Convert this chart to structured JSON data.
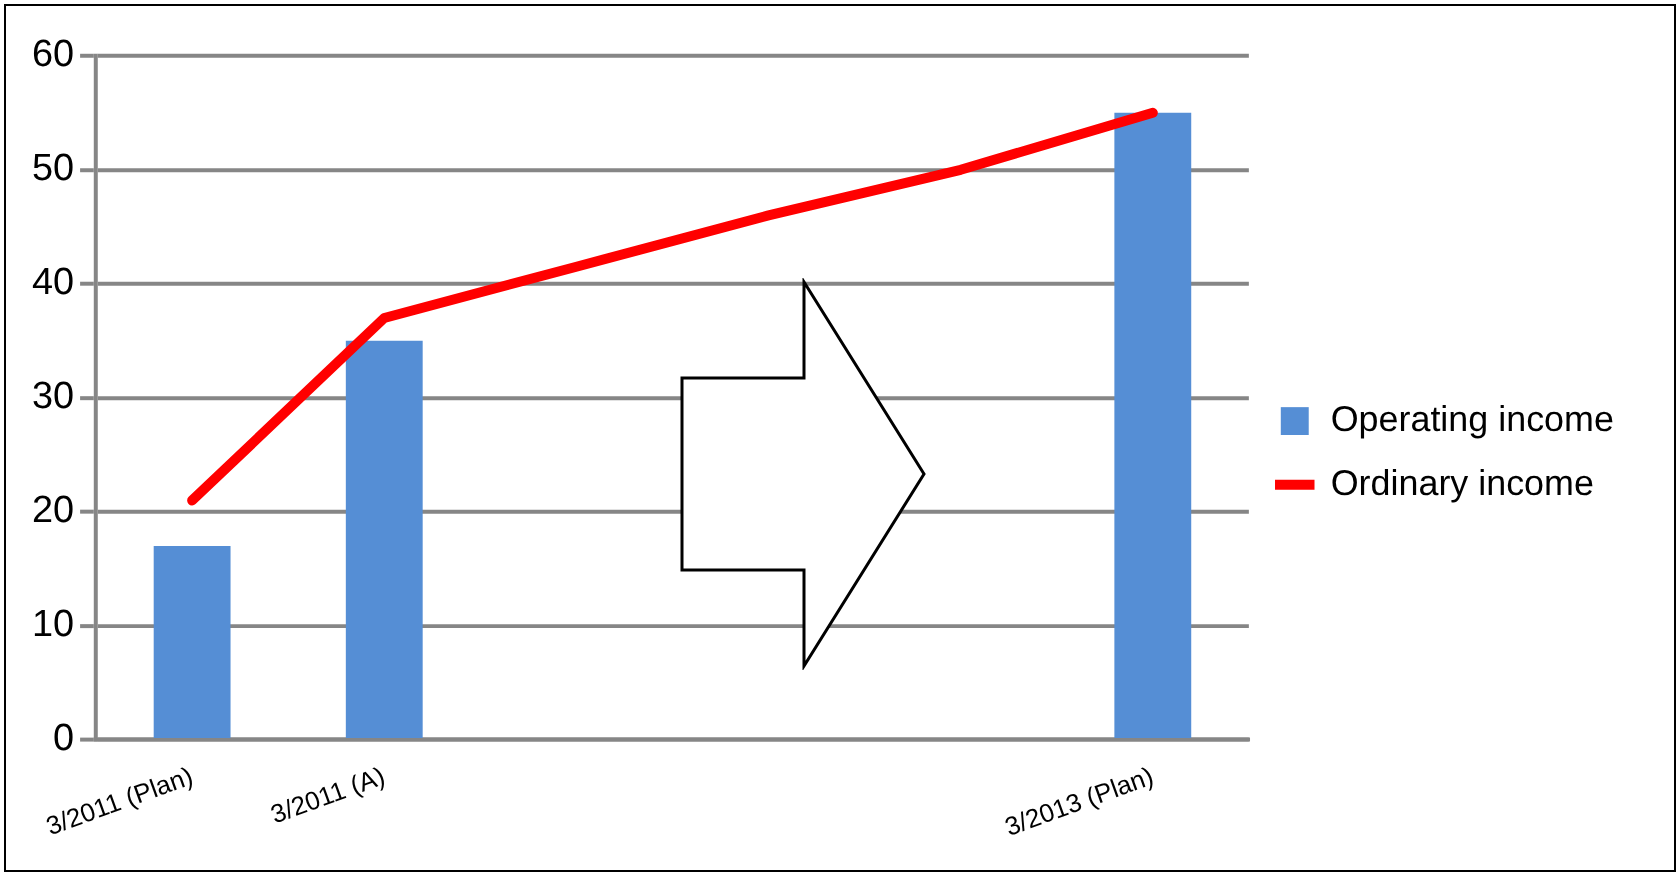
{
  "chart_data": {
    "type": "bar",
    "categories": [
      "3/2011 (Plan)",
      "3/2011 (A)",
      null,
      null,
      null,
      "3/2013 (Plan)"
    ],
    "series": [
      {
        "name": "Operating income",
        "color": "#558ed5",
        "values": [
          17,
          35,
          null,
          null,
          null,
          55
        ]
      },
      {
        "name": "Ordinary income",
        "type": "line",
        "color": "#ff0000",
        "values": [
          21,
          37,
          41.5,
          46,
          50,
          55
        ]
      }
    ],
    "ylim": [
      0,
      60
    ],
    "yticks": [
      0,
      10,
      20,
      30,
      40,
      50,
      60
    ],
    "grid": "y",
    "legend": "right",
    "marker": "none"
  }
}
